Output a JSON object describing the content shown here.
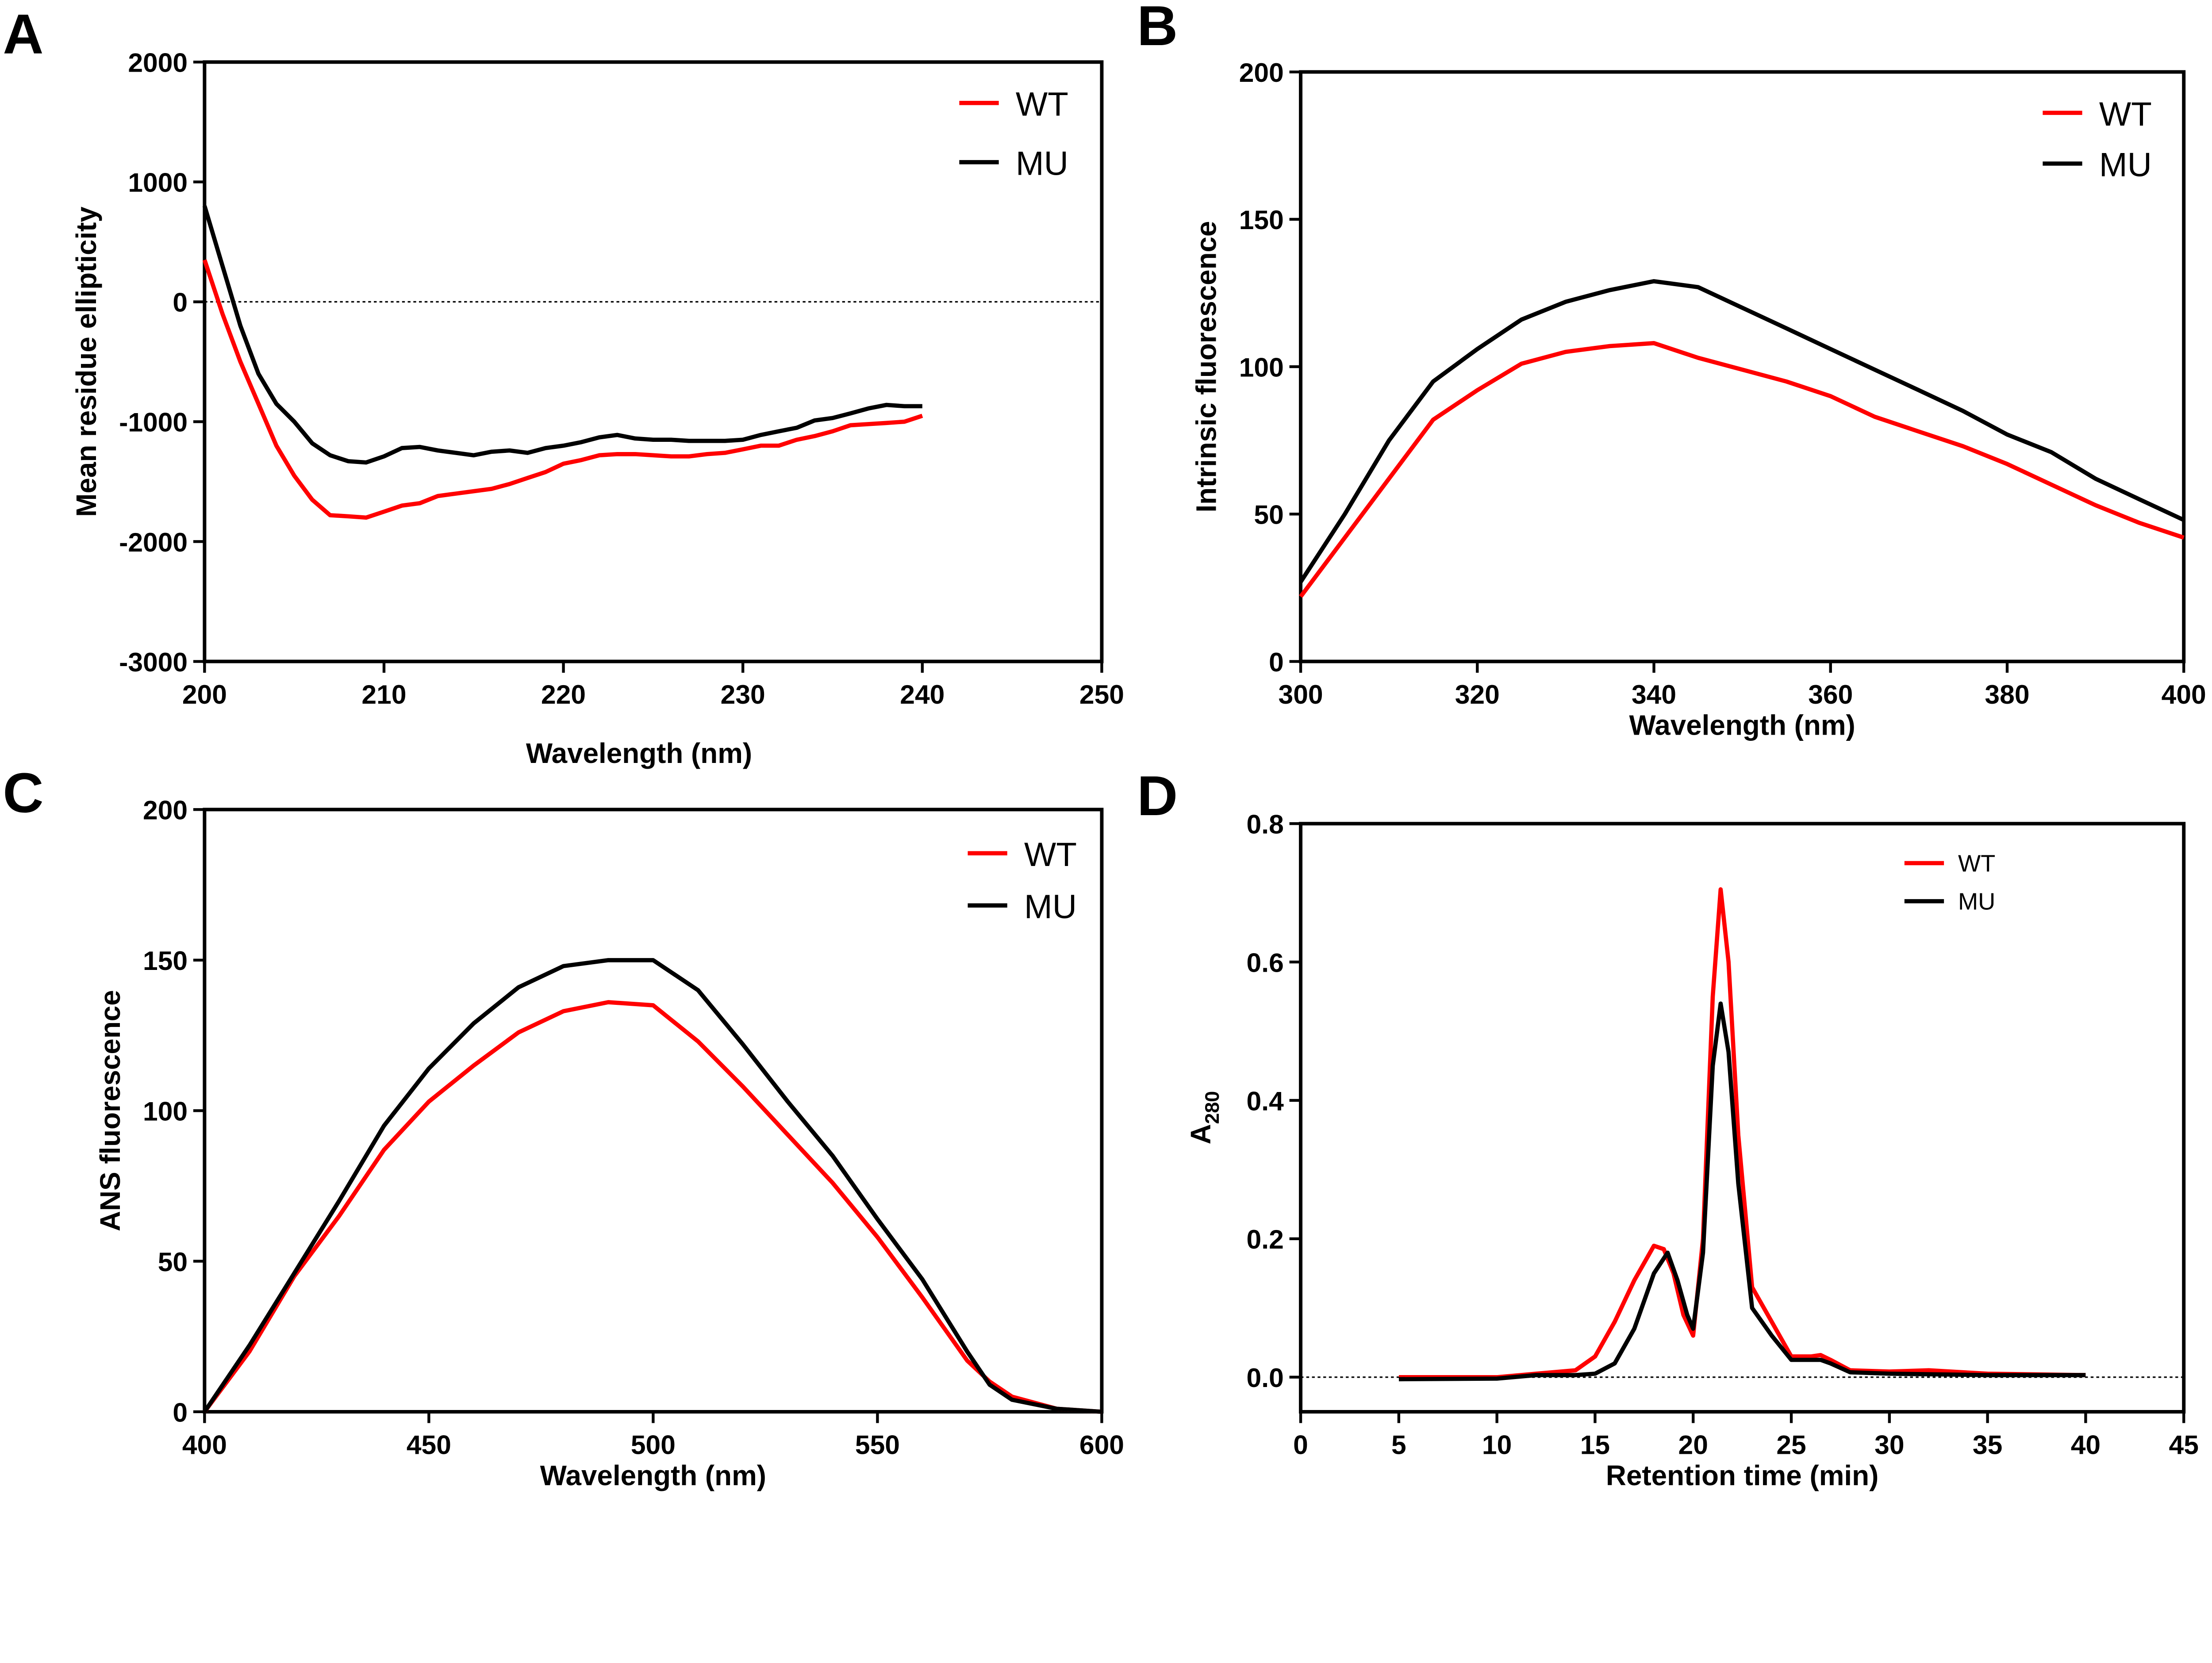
{
  "colors": {
    "WT": "#ff0000",
    "MU": "#000000"
  },
  "chart_data": [
    {
      "panel": "A",
      "type": "line",
      "xlabel": "Wavelength (nm)",
      "ylabel": "Mean residue ellipticity",
      "xlim": [
        200,
        250
      ],
      "ylim": [
        -3000,
        2000
      ],
      "xticks": [
        200,
        210,
        220,
        230,
        240,
        250
      ],
      "yticks": [
        -3000,
        -2000,
        -1000,
        0,
        1000,
        2000
      ],
      "zero_line": true,
      "grid": false,
      "legend": "top-right",
      "series": [
        {
          "name": "WT",
          "color": "#ff0000",
          "x": [
            200,
            201,
            202,
            203,
            204,
            205,
            206,
            207,
            208,
            209,
            210,
            211,
            212,
            213,
            214,
            215,
            216,
            217,
            218,
            219,
            220,
            221,
            222,
            223,
            224,
            225,
            226,
            227,
            228,
            229,
            230,
            231,
            232,
            233,
            234,
            235,
            236,
            237,
            238,
            239,
            240
          ],
          "y": [
            350,
            -100,
            -500,
            -850,
            -1200,
            -1450,
            -1650,
            -1780,
            -1790,
            -1800,
            -1750,
            -1700,
            -1680,
            -1620,
            -1600,
            -1580,
            -1560,
            -1520,
            -1470,
            -1420,
            -1350,
            -1320,
            -1280,
            -1270,
            -1270,
            -1280,
            -1290,
            -1290,
            -1270,
            -1260,
            -1230,
            -1200,
            -1200,
            -1150,
            -1120,
            -1080,
            -1030,
            -1020,
            -1010,
            -1000,
            -950
          ]
        },
        {
          "name": "MU",
          "color": "#000000",
          "x": [
            200,
            201,
            202,
            203,
            204,
            205,
            206,
            207,
            208,
            209,
            210,
            211,
            212,
            213,
            214,
            215,
            216,
            217,
            218,
            219,
            220,
            221,
            222,
            223,
            224,
            225,
            226,
            227,
            228,
            229,
            230,
            231,
            232,
            233,
            234,
            235,
            236,
            237,
            238,
            239,
            240
          ],
          "y": [
            800,
            300,
            -200,
            -600,
            -850,
            -1000,
            -1180,
            -1280,
            -1330,
            -1340,
            -1290,
            -1220,
            -1210,
            -1240,
            -1260,
            -1280,
            -1250,
            -1240,
            -1260,
            -1220,
            -1200,
            -1170,
            -1130,
            -1110,
            -1140,
            -1150,
            -1150,
            -1160,
            -1160,
            -1160,
            -1150,
            -1110,
            -1080,
            -1050,
            -990,
            -970,
            -930,
            -890,
            -860,
            -870,
            -870
          ]
        }
      ]
    },
    {
      "panel": "B",
      "type": "line",
      "xlabel": "Wavelength (nm)",
      "ylabel": "Intrinsic fluorescence",
      "xlim": [
        300,
        400
      ],
      "ylim": [
        0,
        200
      ],
      "xticks": [
        300,
        320,
        340,
        360,
        380,
        400
      ],
      "yticks": [
        0,
        50,
        100,
        150,
        200
      ],
      "zero_line": false,
      "grid": false,
      "legend": "top-right",
      "series": [
        {
          "name": "WT",
          "color": "#ff0000",
          "x": [
            300,
            305,
            310,
            315,
            320,
            325,
            330,
            335,
            340,
            345,
            350,
            355,
            360,
            365,
            370,
            375,
            380,
            385,
            390,
            395,
            400
          ],
          "y": [
            22,
            42,
            62,
            82,
            92,
            101,
            105,
            107,
            108,
            103,
            99,
            95,
            90,
            83,
            78,
            73,
            67,
            60,
            53,
            47,
            42
          ]
        },
        {
          "name": "MU",
          "color": "#000000",
          "x": [
            300,
            305,
            310,
            315,
            320,
            325,
            330,
            335,
            340,
            345,
            350,
            355,
            360,
            365,
            370,
            375,
            380,
            385,
            390,
            395,
            400
          ],
          "y": [
            27,
            50,
            75,
            95,
            106,
            116,
            122,
            126,
            129,
            127,
            120,
            113,
            106,
            99,
            92,
            85,
            77,
            71,
            62,
            55,
            48
          ]
        }
      ]
    },
    {
      "panel": "C",
      "type": "line",
      "xlabel": "Wavelength (nm)",
      "ylabel": "ANS fluorescence",
      "xlim": [
        400,
        600
      ],
      "ylim": [
        0,
        200
      ],
      "xticks": [
        400,
        450,
        500,
        550,
        600
      ],
      "yticks": [
        0,
        50,
        100,
        150,
        200
      ],
      "zero_line": false,
      "grid": false,
      "legend": "top-right",
      "series": [
        {
          "name": "WT",
          "color": "#ff0000",
          "x": [
            400,
            410,
            420,
            430,
            440,
            450,
            460,
            470,
            480,
            490,
            500,
            510,
            520,
            530,
            540,
            550,
            560,
            570,
            575,
            580,
            590,
            600
          ],
          "y": [
            0,
            20,
            45,
            65,
            87,
            103,
            115,
            126,
            133,
            136,
            135,
            123,
            108,
            92,
            76,
            58,
            38,
            17,
            10,
            5,
            1,
            0
          ]
        },
        {
          "name": "MU",
          "color": "#000000",
          "x": [
            400,
            410,
            420,
            430,
            440,
            450,
            460,
            470,
            480,
            490,
            500,
            510,
            520,
            530,
            540,
            550,
            560,
            570,
            575,
            580,
            590,
            600
          ],
          "y": [
            0,
            22,
            46,
            70,
            95,
            114,
            129,
            141,
            148,
            150,
            150,
            140,
            122,
            103,
            85,
            64,
            44,
            20,
            9,
            4,
            1,
            0
          ]
        }
      ]
    },
    {
      "panel": "D",
      "type": "line",
      "xlabel": "Retention  time (min)",
      "ylabel": "A",
      "ylabel_sub": "280",
      "xlim": [
        0,
        45
      ],
      "ylim": [
        -0.05,
        0.8
      ],
      "xticks": [
        0,
        5,
        10,
        15,
        20,
        25,
        30,
        35,
        40,
        45
      ],
      "yticks": [
        0.0,
        0.2,
        0.4,
        0.6,
        0.8
      ],
      "ytick_labels": [
        "0.0",
        "0.2",
        "0.4",
        "0.6",
        "0.8"
      ],
      "zero_line": true,
      "grid": false,
      "legend": "top-right",
      "series": [
        {
          "name": "WT",
          "color": "#ff0000",
          "x": [
            5,
            10,
            12,
            14,
            15,
            16,
            17,
            18,
            18.5,
            19,
            19.5,
            20,
            20.5,
            21,
            21.4,
            21.8,
            22.3,
            23,
            24,
            25,
            26,
            26.5,
            27,
            28,
            30,
            32,
            35,
            40
          ],
          "y": [
            0,
            0,
            0.005,
            0.01,
            0.03,
            0.08,
            0.14,
            0.19,
            0.185,
            0.15,
            0.09,
            0.06,
            0.2,
            0.55,
            0.705,
            0.6,
            0.35,
            0.13,
            0.08,
            0.03,
            0.03,
            0.032,
            0.025,
            0.01,
            0.008,
            0.01,
            0.005,
            0.003
          ]
        },
        {
          "name": "MU",
          "color": "#000000",
          "x": [
            5,
            10,
            12,
            14,
            15,
            16,
            17,
            18,
            18.7,
            19.2,
            19.7,
            20,
            20.5,
            21,
            21.4,
            21.8,
            22.3,
            23,
            24,
            25,
            26,
            26.5,
            27,
            28,
            30,
            35,
            40
          ],
          "y": [
            -0.003,
            -0.002,
            0.003,
            0.003,
            0.005,
            0.02,
            0.07,
            0.15,
            0.18,
            0.14,
            0.09,
            0.07,
            0.18,
            0.45,
            0.54,
            0.47,
            0.28,
            0.1,
            0.06,
            0.025,
            0.025,
            0.025,
            0.02,
            0.007,
            0.005,
            0.003,
            0.003
          ]
        }
      ]
    }
  ]
}
